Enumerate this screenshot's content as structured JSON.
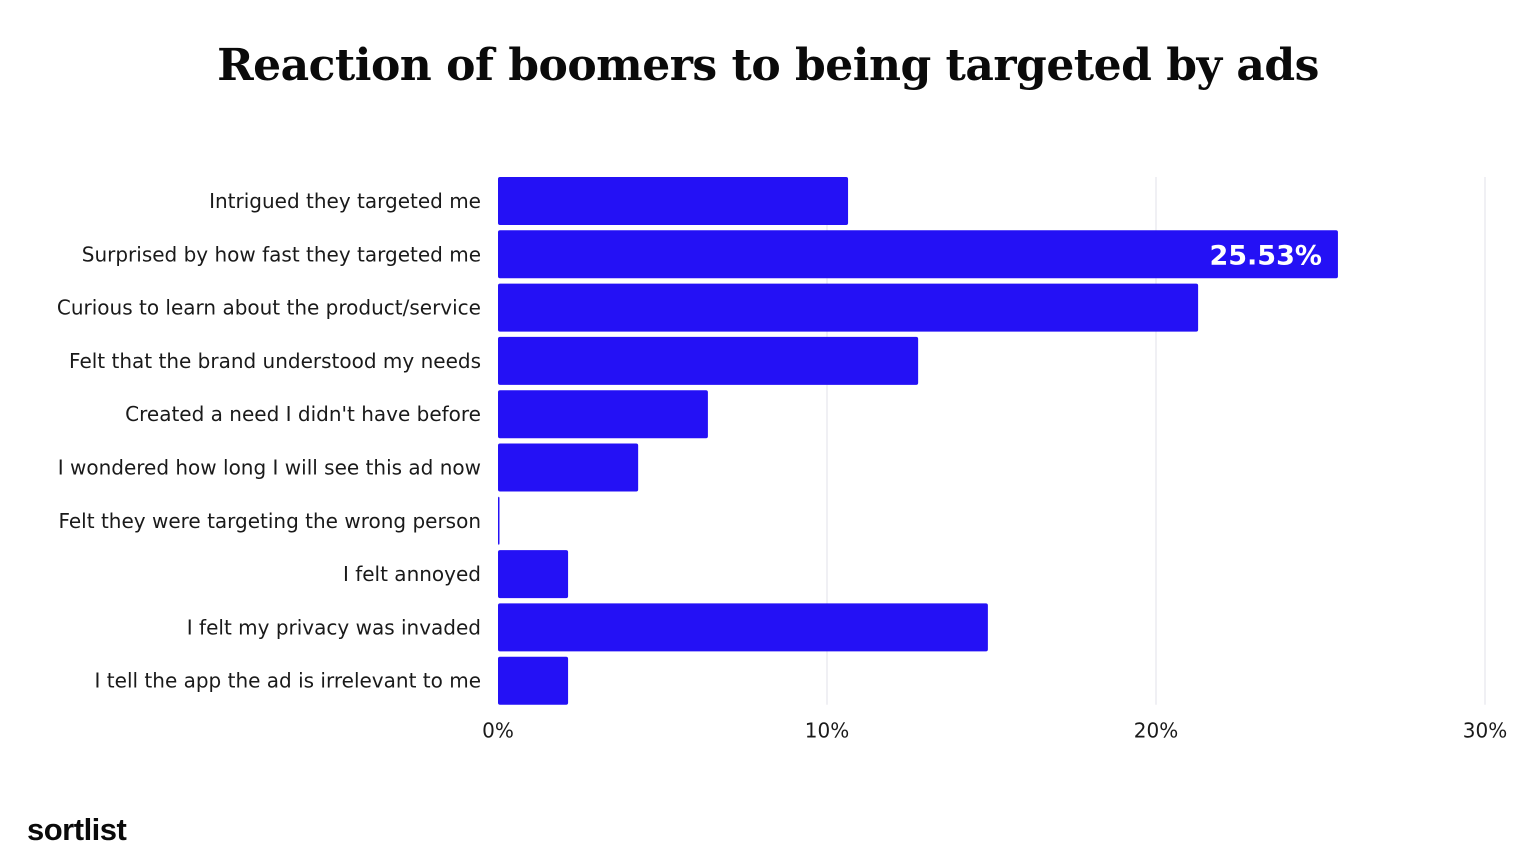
{
  "chart_data": {
    "type": "bar",
    "orientation": "horizontal",
    "title": "Reaction of boomers to being targeted by ads",
    "categories": [
      "Intrigued they targeted me",
      "Surprised by how fast they targeted me",
      "Curious to learn about the product/service",
      "Felt that the brand understood my needs",
      "Created a need I didn't have before",
      "I wondered how long I will see this ad now",
      "Felt they were targeting the wrong person",
      "I felt annoyed",
      "I felt my privacy was invaded",
      "I tell the app the ad is irrelevant to me"
    ],
    "values": [
      10.64,
      25.53,
      21.28,
      12.77,
      6.38,
      4.26,
      0,
      2.13,
      14.89,
      2.13
    ],
    "data_labels": [
      {
        "index": 1,
        "text": "25.53%"
      }
    ],
    "xlim": [
      0,
      30
    ],
    "xticks": [
      "0%",
      "10%",
      "20%",
      "30%"
    ],
    "xlabel": "",
    "ylabel": "",
    "grid": "vertical",
    "legend": "none",
    "bar_color": "#2411f5",
    "grid_color": "#e2e2ea"
  },
  "brand": {
    "logo_text": "sortlist"
  }
}
